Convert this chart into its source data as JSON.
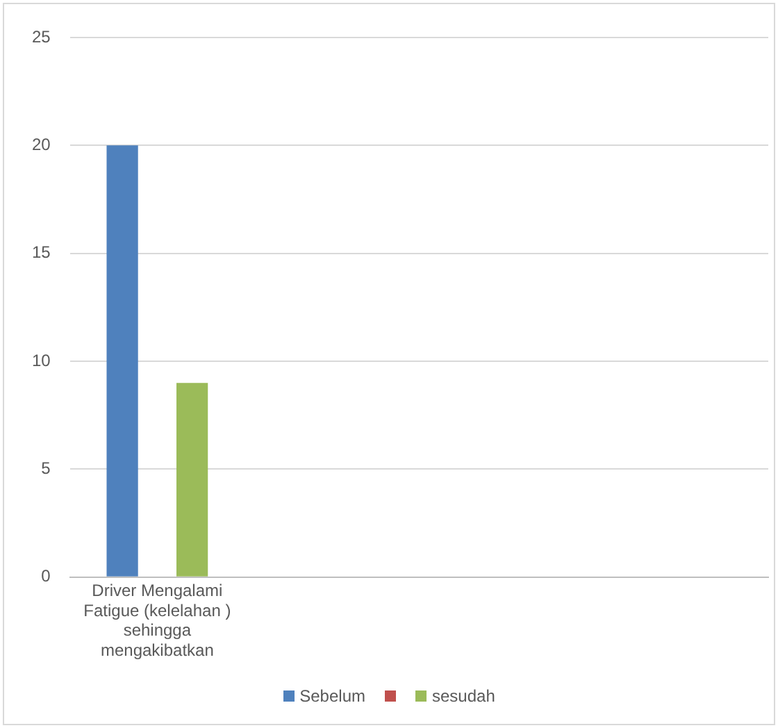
{
  "chart_data": {
    "type": "bar",
    "categories": [
      "Driver Mengalami Fatigue (kelelahan ) sehingga mengakibatkan",
      null,
      null,
      null
    ],
    "series": [
      {
        "name": "Sebelum",
        "color": "#4f81bd",
        "values": [
          20,
          null,
          null,
          null
        ]
      },
      {
        "color": "#c0504d",
        "values": [
          null,
          null,
          null,
          null
        ]
      },
      {
        "name": "sesudah",
        "color": "#9bbb59",
        "values": [
          9,
          null,
          null,
          null
        ]
      }
    ],
    "ylim": [
      0,
      25
    ],
    "yticks": [
      0,
      5,
      10,
      15,
      20,
      25
    ],
    "grid": "y",
    "legend": "bottom"
  }
}
